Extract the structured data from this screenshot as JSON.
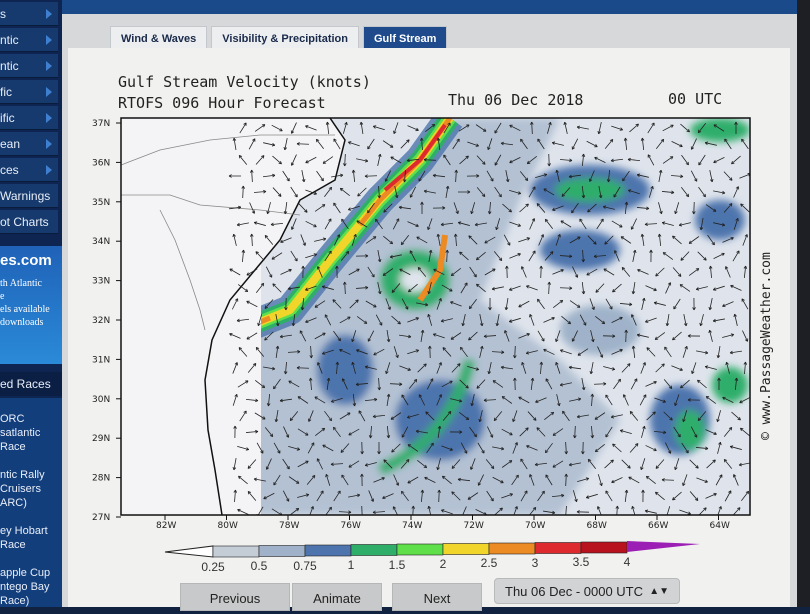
{
  "sidebar": {
    "items": [
      {
        "label": "s"
      },
      {
        "label": "ntic"
      },
      {
        "label": "ntic"
      },
      {
        "label": "fic"
      },
      {
        "label": "ific"
      },
      {
        "label": "ean"
      },
      {
        "label": "ces"
      },
      {
        "label": "Warnings"
      },
      {
        "label": "ot Charts"
      }
    ],
    "promo": {
      "brand": "es.com",
      "lines": [
        "th Atlantic",
        "e",
        "els available",
        "downloads"
      ]
    },
    "races_header": "ed Races",
    "races": [
      [
        "ORC",
        "satlantic",
        "Race"
      ],
      [
        "ntic Rally",
        "Cruisers",
        "ARC)"
      ],
      [
        "ey Hobart",
        "Race"
      ],
      [
        "apple Cup",
        "ntego Bay",
        "Race)"
      ]
    ]
  },
  "tabs": [
    {
      "label": "Wind & Waves",
      "active": false
    },
    {
      "label": "Visibility & Precipitation",
      "active": false
    },
    {
      "label": "Gulf Stream",
      "active": true
    }
  ],
  "chart": {
    "title": "Gulf Stream Velocity (knots)",
    "subtitle": "RTOFS 096 Hour Forecast",
    "date": "Thu 06 Dec 2018",
    "time": "00 UTC",
    "watermark": "© www.PassageWeather.com",
    "lat_labels": [
      "37N",
      "36N",
      "35N",
      "34N",
      "33N",
      "32N",
      "31N",
      "30N",
      "29N",
      "28N",
      "27N"
    ],
    "lon_labels": [
      "82W",
      "80W",
      "78W",
      "76W",
      "74W",
      "72W",
      "70W",
      "68W",
      "66W",
      "64W"
    ],
    "colorbar": {
      "labels": [
        "0.25",
        "0.5",
        "0.75",
        "1",
        "1.5",
        "2",
        "2.5",
        "3",
        "3.5",
        "4"
      ],
      "colors": [
        "#c4ccd6",
        "#9fb2c9",
        "#4d74ad",
        "#2fae6a",
        "#5fe04a",
        "#f1d52a",
        "#ec8a24",
        "#de2a2e",
        "#b8121e",
        "#9b1fb5"
      ]
    }
  },
  "controls": {
    "previous": "Previous",
    "animate": "Animate",
    "next": "Next",
    "time_select": "Thu 06 Dec - 0000 UTC"
  }
}
